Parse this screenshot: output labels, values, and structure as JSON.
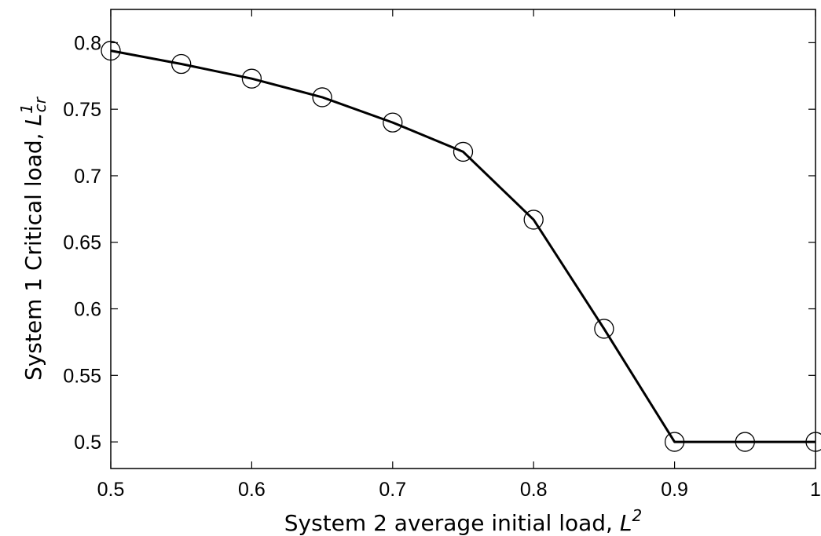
{
  "chart_data": {
    "type": "line",
    "title": "",
    "xlabel": {
      "text": "System 2 average initial load, ",
      "var": "L",
      "sup": "2"
    },
    "ylabel": {
      "text": "System 1 Critical load, ",
      "var": "L",
      "sup": "1",
      "sub": "cr"
    },
    "xlim": [
      0.5,
      1.0
    ],
    "ylim": [
      0.48,
      0.825
    ],
    "xticks": [
      0.5,
      0.6,
      0.7,
      0.8,
      0.9,
      1.0
    ],
    "xtick_labels": [
      "0.5",
      "0.6",
      "0.7",
      "0.8",
      "0.9",
      "1"
    ],
    "yticks": [
      0.5,
      0.55,
      0.6,
      0.65,
      0.7,
      0.75,
      0.8
    ],
    "ytick_labels": [
      "0.5",
      "0.55",
      "0.6",
      "0.65",
      "0.7",
      "0.75",
      "0.8"
    ],
    "grid": false,
    "legend": "none",
    "series": [
      {
        "marker": "open-circle",
        "color": "#000000",
        "x": [
          0.5,
          0.55,
          0.6,
          0.65,
          0.7,
          0.75,
          0.8,
          0.85,
          0.9,
          0.95,
          1.0
        ],
        "y": [
          0.794,
          0.784,
          0.773,
          0.759,
          0.74,
          0.718,
          0.667,
          0.585,
          0.5,
          0.5,
          0.5
        ]
      }
    ]
  }
}
